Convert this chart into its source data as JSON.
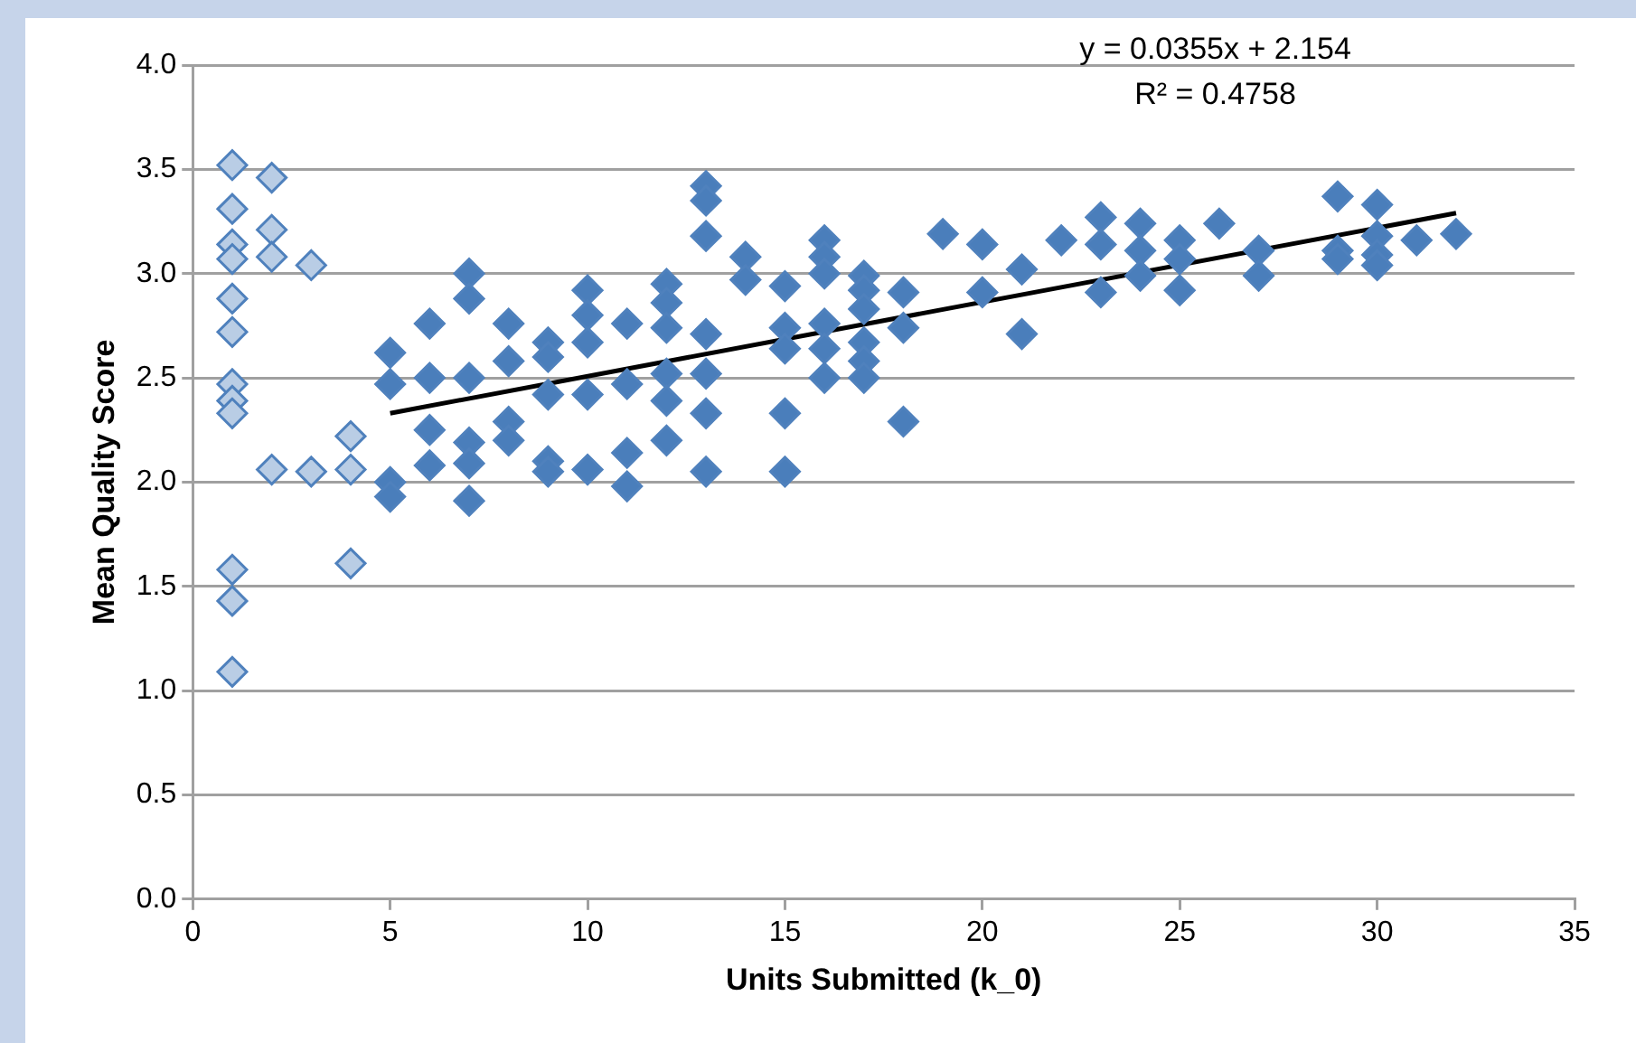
{
  "chart_data": {
    "type": "scatter",
    "xlabel": "Units Submitted (k_0)",
    "ylabel": "Mean Quality Score",
    "xlim": [
      0,
      35
    ],
    "xticks": [
      0,
      5,
      10,
      15,
      20,
      25,
      30,
      35
    ],
    "ylim": [
      0,
      4
    ],
    "yticks": [
      {
        "value": 0,
        "label": "0.0"
      },
      {
        "value": 0.5,
        "label": "0.5"
      },
      {
        "value": 1,
        "label": "1.0"
      },
      {
        "value": 1.5,
        "label": "1.5"
      },
      {
        "value": 2,
        "label": "2.0"
      },
      {
        "value": 2.5,
        "label": "2.5"
      },
      {
        "value": 3,
        "label": "3.0"
      },
      {
        "value": 3.5,
        "label": "3.5"
      },
      {
        "value": 4,
        "label": "4.0"
      }
    ],
    "grid": "y",
    "marker": "diamond",
    "legend": false,
    "annotations": [
      "y = 0.0355x + 2.154",
      "R² = 0.4758"
    ],
    "series": [
      {
        "color": "#b9cde5",
        "x": [
          1,
          1,
          1,
          1,
          1,
          1,
          1,
          1,
          1,
          1,
          1,
          1,
          2,
          2,
          2,
          2,
          3,
          3,
          4,
          4,
          4
        ],
        "values": [
          3.52,
          3.31,
          3.14,
          3.07,
          2.88,
          2.72,
          2.47,
          2.39,
          2.33,
          1.58,
          1.43,
          1.09,
          3.46,
          3.21,
          3.08,
          2.06,
          3.04,
          2.05,
          2.22,
          2.06,
          1.61
        ]
      },
      {
        "color": "#4a7ebb",
        "x": [
          5,
          5,
          5,
          5,
          6,
          6,
          6,
          6,
          7,
          7,
          7,
          7,
          7,
          7,
          8,
          8,
          8,
          8,
          9,
          9,
          9,
          9,
          9,
          10,
          10,
          10,
          10,
          10,
          11,
          11,
          11,
          11,
          12,
          12,
          12,
          12,
          12,
          12,
          13,
          13,
          13,
          13,
          13,
          13,
          13,
          14,
          14,
          15,
          15,
          15,
          15,
          15,
          16,
          16,
          16,
          16,
          16,
          16,
          17,
          17,
          17,
          17,
          17,
          17,
          18,
          18,
          18,
          19,
          20,
          20,
          21,
          21,
          22,
          23,
          23,
          23,
          24,
          24,
          24,
          25,
          25,
          25,
          26,
          27,
          27,
          29,
          29,
          29,
          30,
          30,
          30,
          30,
          31,
          32
        ],
        "values": [
          2.62,
          2.47,
          2.0,
          1.93,
          2.76,
          2.5,
          2.25,
          2.08,
          3.0,
          2.88,
          2.5,
          2.19,
          2.09,
          1.91,
          2.76,
          2.58,
          2.29,
          2.2,
          2.67,
          2.6,
          2.42,
          2.1,
          2.05,
          2.92,
          2.8,
          2.67,
          2.42,
          2.06,
          2.76,
          2.47,
          2.14,
          1.98,
          2.95,
          2.86,
          2.74,
          2.52,
          2.39,
          2.2,
          3.42,
          3.35,
          3.18,
          2.71,
          2.52,
          2.33,
          2.05,
          3.08,
          2.97,
          2.94,
          2.74,
          2.64,
          2.33,
          2.05,
          3.16,
          3.08,
          3.0,
          2.76,
          2.64,
          2.5,
          2.99,
          2.92,
          2.83,
          2.67,
          2.58,
          2.5,
          2.91,
          2.74,
          2.29,
          3.19,
          3.14,
          2.91,
          3.02,
          2.71,
          3.16,
          3.27,
          3.14,
          2.91,
          3.24,
          3.11,
          2.99,
          3.16,
          3.07,
          2.92,
          3.24,
          3.11,
          2.99,
          3.37,
          3.11,
          3.07,
          3.33,
          3.18,
          3.09,
          3.04,
          3.16,
          3.19
        ]
      },
      {
        "type": "line",
        "color": "#000000",
        "marker": "none",
        "x": [
          5,
          32
        ],
        "values": [
          2.33,
          3.29
        ]
      }
    ]
  }
}
